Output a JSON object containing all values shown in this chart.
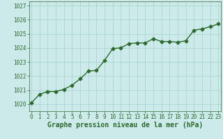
{
  "x": [
    0,
    1,
    2,
    3,
    4,
    5,
    6,
    7,
    8,
    9,
    10,
    11,
    12,
    13,
    14,
    15,
    16,
    17,
    18,
    19,
    20,
    21,
    22,
    23
  ],
  "y": [
    1020.1,
    1020.7,
    1020.9,
    1020.9,
    1021.05,
    1021.35,
    1021.8,
    1022.35,
    1022.4,
    1023.1,
    1023.95,
    1024.0,
    1024.3,
    1024.35,
    1024.35,
    1024.65,
    1024.45,
    1024.45,
    1024.4,
    1024.5,
    1025.25,
    1025.35,
    1025.5,
    1025.7
  ],
  "line_color": "#2d6a2d",
  "marker": "D",
  "marker_size": 2.5,
  "linewidth": 1.0,
  "background_color": "#cceaea",
  "grid_color": "#aad4d4",
  "xlabel": "Graphe pression niveau de la mer (hPa)",
  "xlabel_fontsize": 7,
  "xlabel_color": "#2d6a2d",
  "ytick_labels": [
    "1020",
    "1021",
    "1022",
    "1023",
    "1024",
    "1025",
    "1026",
    "1027"
  ],
  "ytick_values": [
    1020,
    1021,
    1022,
    1023,
    1024,
    1025,
    1026,
    1027
  ],
  "ylim": [
    1019.5,
    1027.3
  ],
  "xlim": [
    -0.3,
    23.3
  ],
  "xtick_values": [
    0,
    1,
    2,
    3,
    4,
    5,
    6,
    7,
    8,
    9,
    10,
    11,
    12,
    13,
    14,
    15,
    16,
    17,
    18,
    19,
    20,
    21,
    22,
    23
  ],
  "tick_fontsize": 5.5,
  "tick_color": "#2d6a2d"
}
